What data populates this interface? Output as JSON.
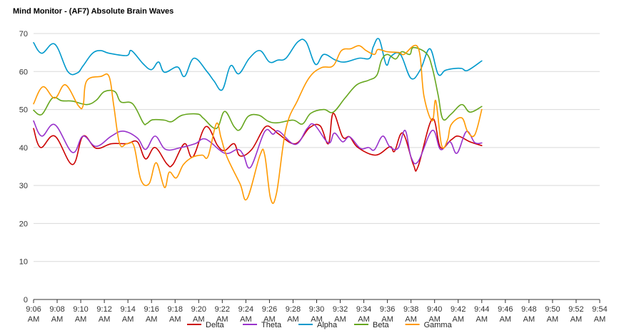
{
  "chart_data": {
    "type": "line",
    "title": "Mind Monitor - (AF7) Absolute Brain Waves",
    "xlabel": "",
    "ylabel": "",
    "ylim": [
      0,
      70
    ],
    "yticks": [
      0,
      10,
      20,
      30,
      40,
      50,
      60,
      70
    ],
    "grid": true,
    "legend_position": "bottom",
    "x_start_minute": 366,
    "x_end_minute": 414,
    "x_tick_labels": [
      [
        "9:06",
        "AM"
      ],
      [
        "9:08",
        "AM"
      ],
      [
        "9:10",
        "AM"
      ],
      [
        "9:12",
        "AM"
      ],
      [
        "9:14",
        "AM"
      ],
      [
        "9:16",
        "AM"
      ],
      [
        "9:18",
        "AM"
      ],
      [
        "9:20",
        "AM"
      ],
      [
        "9:22",
        "AM"
      ],
      [
        "9:24",
        "AM"
      ],
      [
        "9:26",
        "AM"
      ],
      [
        "9:28",
        "AM"
      ],
      [
        "9:30",
        "AM"
      ],
      [
        "9:32",
        "AM"
      ],
      [
        "9:34",
        "AM"
      ],
      [
        "9:36",
        "AM"
      ],
      [
        "9:38",
        "AM"
      ],
      [
        "9:40",
        "AM"
      ],
      [
        "9:42",
        "AM"
      ],
      [
        "9:44",
        "AM"
      ],
      [
        "9:46",
        "AM"
      ],
      [
        "9:48",
        "AM"
      ],
      [
        "9:50",
        "AM"
      ],
      [
        "9:52",
        "AM"
      ],
      [
        "9:54",
        "AM"
      ]
    ],
    "series": [
      {
        "name": "Delta",
        "color": "#cc0000",
        "values": [
          [
            366,
            45
          ],
          [
            366.6,
            40
          ],
          [
            367.8,
            43
          ],
          [
            369.3,
            35.5
          ],
          [
            370.2,
            43
          ],
          [
            371.3,
            39.8
          ],
          [
            372.6,
            41
          ],
          [
            373.9,
            41
          ],
          [
            374.8,
            41.5
          ],
          [
            375.5,
            37
          ],
          [
            376.3,
            40
          ],
          [
            377.3,
            35.7
          ],
          [
            377.8,
            35.5
          ],
          [
            378.8,
            41
          ],
          [
            379.5,
            37.5
          ],
          [
            380.6,
            45.5
          ],
          [
            381.6,
            40.5
          ],
          [
            382.2,
            39.2
          ],
          [
            383,
            41
          ],
          [
            383.5,
            37.8
          ],
          [
            384.5,
            39.5
          ],
          [
            385.6,
            45.3
          ],
          [
            386.3,
            44.8
          ],
          [
            386.8,
            43.5
          ],
          [
            388.2,
            41
          ],
          [
            389.4,
            45.2
          ],
          [
            390.3,
            45.7
          ],
          [
            391,
            41
          ],
          [
            391.4,
            49
          ],
          [
            392.2,
            42.8
          ],
          [
            392.8,
            42.8
          ],
          [
            393.5,
            40
          ],
          [
            395,
            38
          ],
          [
            396.2,
            40.2
          ],
          [
            396.6,
            39
          ],
          [
            397.3,
            43.8
          ],
          [
            398.2,
            35.5
          ],
          [
            398.6,
            35
          ],
          [
            399.8,
            47.5
          ],
          [
            400.5,
            40
          ],
          [
            401.4,
            42
          ],
          [
            402,
            43
          ],
          [
            403,
            41.5
          ],
          [
            404,
            40.5
          ]
        ]
      },
      {
        "name": "Theta",
        "color": "#9933cc",
        "values": [
          [
            366,
            47
          ],
          [
            366.7,
            43
          ],
          [
            367.8,
            46
          ],
          [
            369.3,
            38.7
          ],
          [
            370.2,
            43
          ],
          [
            371.3,
            40.3
          ],
          [
            372.6,
            43
          ],
          [
            373.6,
            44.3
          ],
          [
            374.8,
            42.5
          ],
          [
            375.5,
            39.5
          ],
          [
            376.3,
            43
          ],
          [
            377.2,
            39.5
          ],
          [
            378.5,
            40
          ],
          [
            379.7,
            41
          ],
          [
            380.6,
            42.2
          ],
          [
            382.2,
            38.5
          ],
          [
            383.3,
            39.5
          ],
          [
            383.8,
            38
          ],
          [
            384.4,
            34.8
          ],
          [
            385.6,
            44.2
          ],
          [
            386.3,
            43.5
          ],
          [
            386.8,
            44.3
          ],
          [
            388.2,
            40.8
          ],
          [
            389.2,
            45
          ],
          [
            389.8,
            46
          ],
          [
            391,
            41.2
          ],
          [
            391.5,
            43.8
          ],
          [
            392.2,
            41.5
          ],
          [
            392.8,
            42.8
          ],
          [
            393.7,
            39.8
          ],
          [
            394.4,
            40
          ],
          [
            394.9,
            39.4
          ],
          [
            395.6,
            43
          ],
          [
            396.2,
            40.2
          ],
          [
            396.9,
            39.8
          ],
          [
            397.5,
            44.5
          ],
          [
            398,
            37.5
          ],
          [
            398.6,
            36.3
          ],
          [
            399.8,
            44.5
          ],
          [
            400.5,
            39.5
          ],
          [
            401.3,
            41.5
          ],
          [
            401.9,
            38.5
          ],
          [
            402.7,
            44.2
          ],
          [
            403.4,
            41.3
          ],
          [
            404,
            41.2
          ]
        ]
      },
      {
        "name": "Alpha",
        "color": "#0099cc",
        "values": [
          [
            366,
            67.6
          ],
          [
            366.7,
            64.8
          ],
          [
            367.8,
            67.2
          ],
          [
            368.9,
            60
          ],
          [
            369.7,
            59.6
          ],
          [
            370.2,
            61.5
          ],
          [
            371,
            64.8
          ],
          [
            371.7,
            65.5
          ],
          [
            372.4,
            64.8
          ],
          [
            373.9,
            64.2
          ],
          [
            374.3,
            65.5
          ],
          [
            375.3,
            62
          ],
          [
            376,
            60.5
          ],
          [
            376.6,
            62.5
          ],
          [
            377.1,
            59.8
          ],
          [
            378.2,
            61.2
          ],
          [
            378.8,
            58.7
          ],
          [
            379.6,
            63.5
          ],
          [
            380.7,
            60
          ],
          [
            381.3,
            57.5
          ],
          [
            382,
            55.2
          ],
          [
            382.7,
            61.5
          ],
          [
            383.4,
            59.4
          ],
          [
            384.3,
            63.5
          ],
          [
            385.2,
            65.5
          ],
          [
            386,
            62.5
          ],
          [
            386.7,
            63
          ],
          [
            387.4,
            63.5
          ],
          [
            388.4,
            67.8
          ],
          [
            389.1,
            67.8
          ],
          [
            389.9,
            61.9
          ],
          [
            390.6,
            64.5
          ],
          [
            391.6,
            63
          ],
          [
            392.4,
            62.5
          ],
          [
            393.6,
            63.5
          ],
          [
            394.5,
            63.5
          ],
          [
            394.8,
            66.5
          ],
          [
            395.3,
            68.5
          ],
          [
            395.9,
            61.8
          ],
          [
            396.3,
            64
          ],
          [
            397.1,
            64.5
          ],
          [
            398,
            58.2
          ],
          [
            398.8,
            60.5
          ],
          [
            399.6,
            66
          ],
          [
            400.3,
            59.3
          ],
          [
            400.9,
            60.3
          ],
          [
            401.7,
            60.8
          ],
          [
            402.3,
            60.8
          ],
          [
            402.8,
            60.3
          ],
          [
            404,
            62.8
          ]
        ]
      },
      {
        "name": "Beta",
        "color": "#66a61e",
        "values": [
          [
            366,
            49.8
          ],
          [
            366.7,
            48.7
          ],
          [
            367.6,
            53
          ],
          [
            368.4,
            52.3
          ],
          [
            369.3,
            52.2
          ],
          [
            370.5,
            51.3
          ],
          [
            371.3,
            52.4
          ],
          [
            372,
            54.7
          ],
          [
            372.9,
            54.7
          ],
          [
            373.4,
            52
          ],
          [
            374.4,
            51.5
          ],
          [
            375.3,
            46.5
          ],
          [
            375.6,
            46.3
          ],
          [
            376.1,
            47.3
          ],
          [
            377.1,
            47.2
          ],
          [
            377.7,
            46.8
          ],
          [
            378.6,
            48.5
          ],
          [
            379.9,
            48.8
          ],
          [
            380.4,
            47.7
          ],
          [
            381.5,
            45
          ],
          [
            382.2,
            49.5
          ],
          [
            383,
            45.5
          ],
          [
            383.5,
            44.7
          ],
          [
            384.2,
            48.2
          ],
          [
            385.1,
            48.5
          ],
          [
            385.9,
            46.9
          ],
          [
            386.7,
            46.5
          ],
          [
            388,
            47.2
          ],
          [
            388.8,
            46.2
          ],
          [
            389.5,
            49
          ],
          [
            390.6,
            50
          ],
          [
            391.4,
            49.3
          ],
          [
            392.4,
            53
          ],
          [
            393.4,
            56.5
          ],
          [
            394.4,
            57.7
          ],
          [
            395.1,
            59
          ],
          [
            395.5,
            63
          ],
          [
            396,
            64.5
          ],
          [
            396.7,
            63.3
          ],
          [
            397.2,
            65.2
          ],
          [
            397.9,
            64.5
          ],
          [
            398.2,
            66.3
          ],
          [
            399.3,
            64.8
          ],
          [
            399.8,
            61
          ],
          [
            400.3,
            53.8
          ],
          [
            400.7,
            47.5
          ],
          [
            401.4,
            48.8
          ],
          [
            402.3,
            51.3
          ],
          [
            403,
            49.3
          ],
          [
            404,
            50.8
          ]
        ]
      },
      {
        "name": "Gamma",
        "color": "#ff9900",
        "values": [
          [
            366,
            51.5
          ],
          [
            366.8,
            56
          ],
          [
            367.8,
            53
          ],
          [
            368.7,
            56.5
          ],
          [
            369.8,
            51
          ],
          [
            370.2,
            51
          ],
          [
            370.5,
            57.5
          ],
          [
            371.7,
            58.7
          ],
          [
            372.4,
            58.7
          ],
          [
            372.8,
            51
          ],
          [
            373.3,
            41
          ],
          [
            373.9,
            41
          ],
          [
            374.5,
            40.5
          ],
          [
            375.1,
            31.5
          ],
          [
            375.8,
            30.5
          ],
          [
            376.4,
            36
          ],
          [
            377.1,
            29.5
          ],
          [
            377.5,
            33.5
          ],
          [
            378.1,
            32
          ],
          [
            378.7,
            35.5
          ],
          [
            379.5,
            37.5
          ],
          [
            380.3,
            38
          ],
          [
            380.8,
            37.7
          ],
          [
            381.5,
            46.3
          ],
          [
            381.9,
            42.5
          ],
          [
            382.4,
            37.5
          ],
          [
            383.5,
            30.5
          ],
          [
            384.1,
            26.5
          ],
          [
            385.2,
            38
          ],
          [
            385.6,
            38
          ],
          [
            386.1,
            26.5
          ],
          [
            386.6,
            28
          ],
          [
            387.4,
            45
          ],
          [
            388.4,
            52.5
          ],
          [
            389.4,
            58.5
          ],
          [
            390.4,
            61
          ],
          [
            391.4,
            61.5
          ],
          [
            392.1,
            65.5
          ],
          [
            392.9,
            66
          ],
          [
            393.6,
            66.8
          ],
          [
            394.2,
            65.5
          ],
          [
            394.9,
            64.5
          ],
          [
            395.2,
            65.8
          ],
          [
            396,
            65.2
          ],
          [
            397,
            65
          ],
          [
            397.4,
            64.5
          ],
          [
            398.6,
            66.3
          ],
          [
            399.1,
            53.5
          ],
          [
            399.8,
            47
          ],
          [
            400.1,
            52.3
          ],
          [
            400.6,
            40.5
          ],
          [
            401.1,
            42
          ],
          [
            401.4,
            46
          ],
          [
            402.3,
            47.8
          ],
          [
            402.8,
            44.2
          ],
          [
            403.4,
            43.3
          ],
          [
            404,
            50
          ]
        ]
      }
    ]
  }
}
